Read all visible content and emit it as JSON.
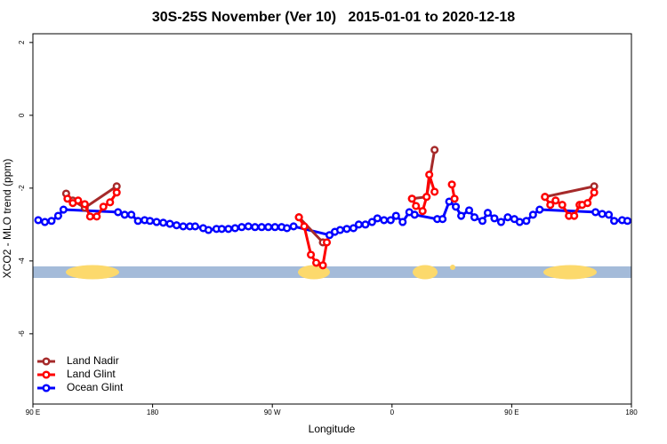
{
  "chart_data": {
    "type": "line",
    "title": "30S-25S November (Ver 10)   2015-01-01 to 2020-12-18",
    "x_label": "Longitude",
    "y_label": "XCO2 - MLO trend (ppm)",
    "xlim": [
      90,
      540
    ],
    "ylim": [
      -7.93,
      2.24
    ],
    "xticks": [
      {
        "value": 90,
        "label": "90 E"
      },
      180,
      {
        "value": 270,
        "label": "90 W"
      },
      {
        "value": 360,
        "label": "0"
      },
      {
        "value": 450,
        "label": "90 E"
      },
      {
        "value": 540,
        "label": "180"
      }
    ],
    "yticks": [
      -6,
      -4,
      -2,
      0,
      2
    ],
    "legend": "bottom-left",
    "series": [
      {
        "name": "Land Nadir",
        "color": "#a52a2a",
        "x": [
          115,
          120,
          129,
          153,
          null,
          290,
          308,
          null,
          375,
          386,
          392,
          null,
          475,
          512
        ],
        "values": [
          -2.15,
          -2.34,
          -2.54,
          -1.95,
          null,
          -2.8,
          -3.49,
          null,
          -2.29,
          -2.24,
          -0.95,
          null,
          -2.24,
          -1.95
        ]
      },
      {
        "name": "Land Glint",
        "color": "#ff0000",
        "x": [
          116,
          120,
          124,
          129,
          133,
          138,
          143,
          148,
          153,
          null,
          290,
          294,
          299,
          303,
          308,
          311,
          null,
          375,
          378,
          383,
          386,
          388,
          392,
          null,
          405,
          407,
          null,
          475,
          479,
          483,
          488,
          493,
          497,
          501,
          503,
          507,
          512
        ],
        "values": [
          -2.29,
          -2.41,
          -2.34,
          -2.44,
          -2.78,
          -2.78,
          -2.51,
          -2.39,
          -2.12,
          null,
          -2.8,
          -3.05,
          -3.83,
          -4.05,
          -4.12,
          -3.49,
          null,
          -2.29,
          -2.49,
          -2.63,
          -2.24,
          -1.63,
          -2.1,
          null,
          -1.9,
          -2.29,
          null,
          -2.24,
          -2.46,
          -2.34,
          -2.46,
          -2.76,
          -2.76,
          -2.46,
          -2.46,
          -2.41,
          -2.12
        ]
      },
      {
        "name": "Ocean Glint",
        "color": "#0000ff",
        "x": [
          94,
          99,
          104,
          109,
          113,
          154,
          159,
          164,
          169,
          174,
          178,
          183,
          188,
          193,
          198,
          203,
          208,
          212,
          218,
          222,
          228,
          232,
          237,
          242,
          247,
          252,
          257,
          262,
          267,
          272,
          277,
          281,
          286,
          313,
          317,
          321,
          326,
          331,
          335,
          340,
          345,
          349,
          354,
          359,
          363,
          368,
          373,
          377,
          394,
          398,
          403,
          408,
          412,
          418,
          422,
          428,
          432,
          437,
          442,
          447,
          452,
          456,
          461,
          466,
          471,
          513,
          518,
          523,
          527,
          533,
          537
        ],
        "values": [
          -2.88,
          -2.93,
          -2.9,
          -2.76,
          -2.59,
          -2.66,
          -2.73,
          -2.73,
          -2.9,
          -2.88,
          -2.9,
          -2.93,
          -2.95,
          -2.98,
          -3.02,
          -3.05,
          -3.05,
          -3.05,
          -3.1,
          -3.15,
          -3.12,
          -3.12,
          -3.12,
          -3.1,
          -3.07,
          -3.05,
          -3.07,
          -3.07,
          -3.07,
          -3.07,
          -3.07,
          -3.1,
          -3.05,
          -3.29,
          -3.2,
          -3.15,
          -3.12,
          -3.1,
          -3.0,
          -3.0,
          -2.93,
          -2.83,
          -2.88,
          -2.88,
          -2.76,
          -2.93,
          -2.66,
          -2.73,
          -2.85,
          -2.85,
          -2.37,
          -2.51,
          -2.76,
          -2.61,
          -2.8,
          -2.9,
          -2.68,
          -2.83,
          -2.93,
          -2.8,
          -2.85,
          -2.93,
          -2.9,
          -2.73,
          -2.59,
          -2.66,
          -2.71,
          -2.73,
          -2.9,
          -2.88,
          -2.9
        ]
      }
    ]
  }
}
